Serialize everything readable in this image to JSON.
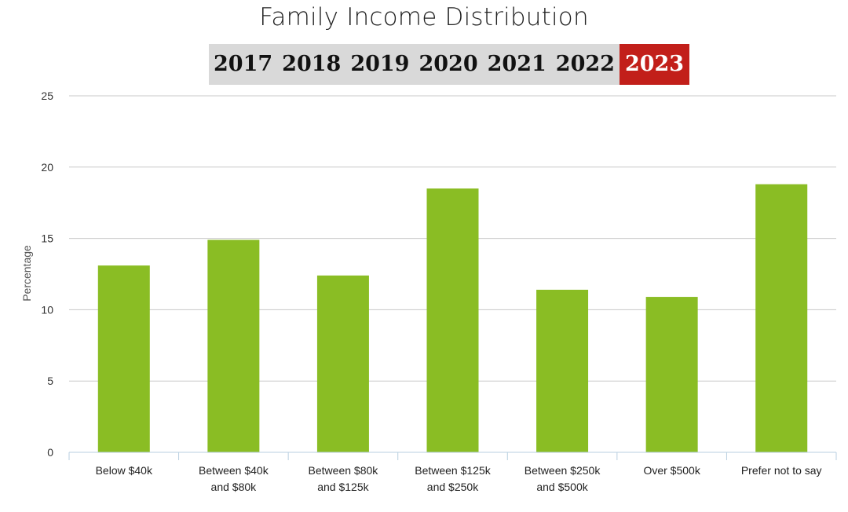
{
  "year_selector": {
    "years": [
      "2017",
      "2018",
      "2019",
      "2020",
      "2021",
      "2022",
      "2023"
    ],
    "selected": "2023",
    "active_color": "#c21f1a"
  },
  "chart_data": {
    "type": "bar",
    "title": "Family Income Distribution",
    "ylabel": "Percentage",
    "xlabel": "",
    "ylim": [
      0,
      25
    ],
    "yticks": [
      0,
      5,
      10,
      15,
      20,
      25
    ],
    "grid": true,
    "categories": [
      [
        "Below $40k"
      ],
      [
        "Between $40k",
        "and $80k"
      ],
      [
        "Between $80k",
        "and $125k"
      ],
      [
        "Between $125k",
        "and $250k"
      ],
      [
        "Between $250k",
        "and $500k"
      ],
      [
        "Over $500k"
      ],
      [
        "Prefer not to say"
      ]
    ],
    "values": [
      13.1,
      14.9,
      12.4,
      18.5,
      11.4,
      10.9,
      18.8
    ],
    "bar_color": "#8abd24"
  }
}
